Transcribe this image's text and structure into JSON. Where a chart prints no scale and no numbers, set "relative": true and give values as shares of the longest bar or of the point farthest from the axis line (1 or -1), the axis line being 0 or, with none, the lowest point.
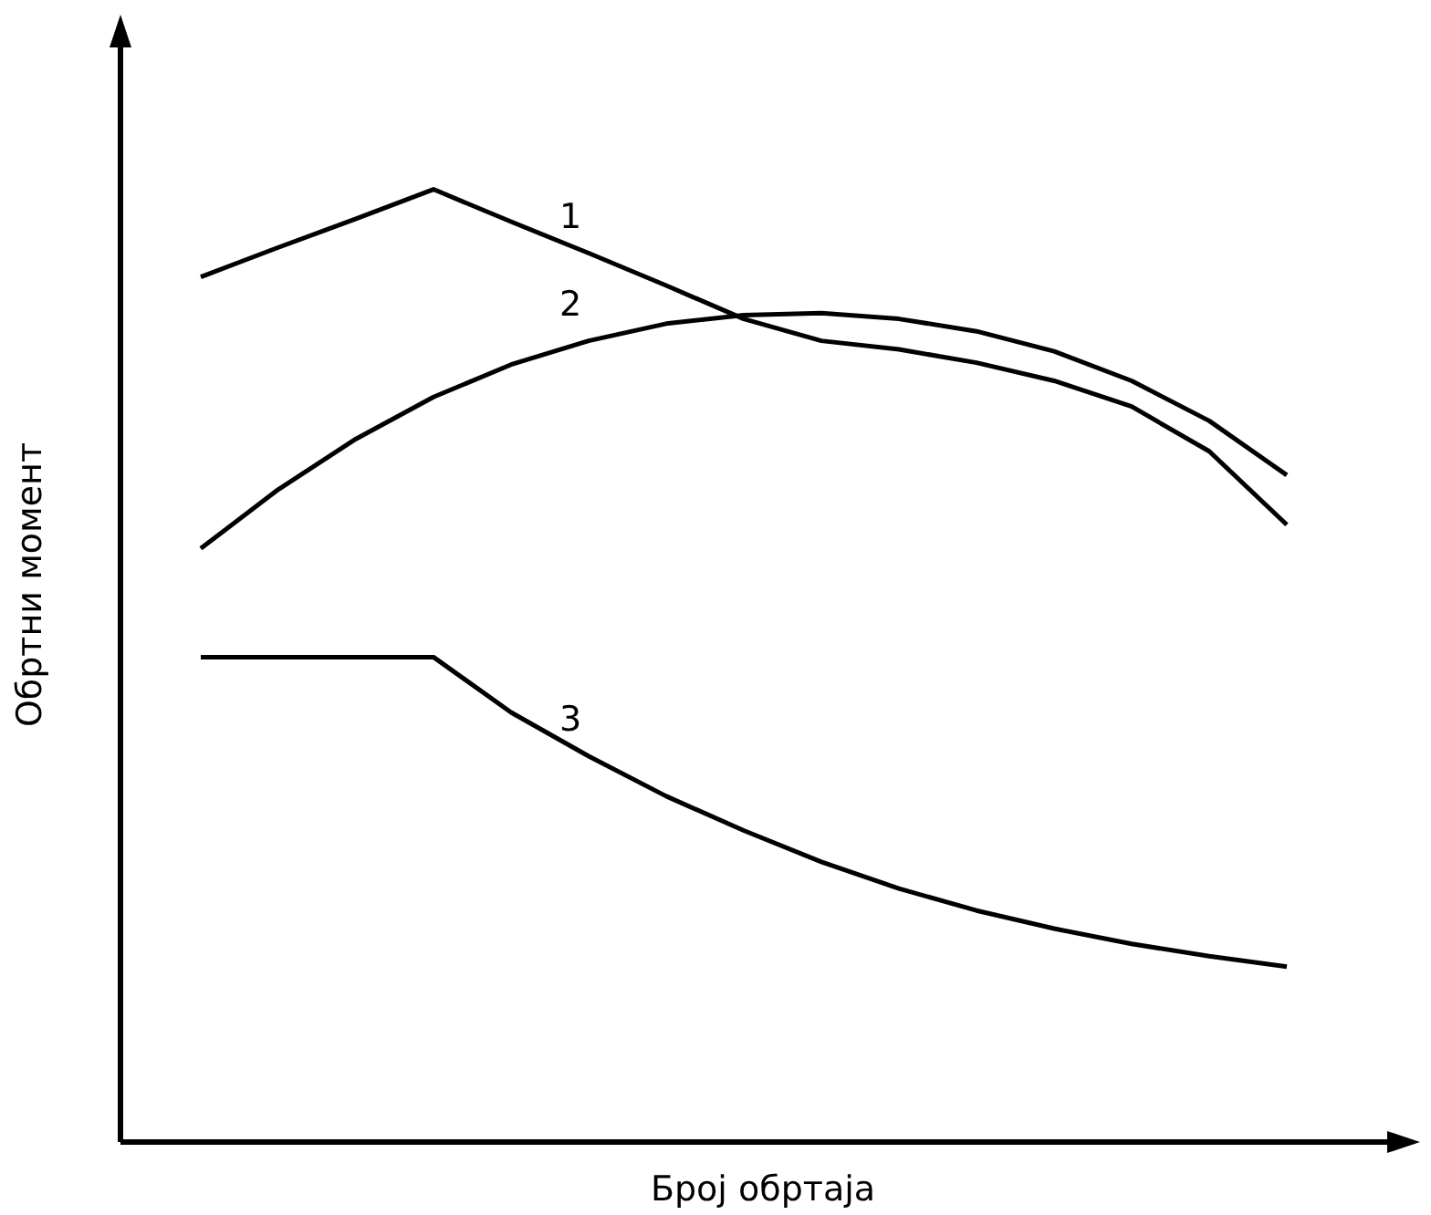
{
  "chart_data": {
    "type": "line",
    "relative": true,
    "xlabel": "Број обртаја",
    "ylabel": "Обртни момент",
    "categories": [
      null,
      null,
      null,
      null,
      null,
      null,
      null,
      null,
      null,
      null,
      null,
      null,
      null,
      null,
      null
    ],
    "grid": false,
    "legend": false,
    "marker": "none",
    "line_style": "solid",
    "series": [
      {
        "name": "1",
        "color": "#000000",
        "values": [
          0.908,
          0.939,
          0.969,
          1,
          0.966,
          0.933,
          0.899,
          0.864,
          0.841,
          0.832,
          0.818,
          0.799,
          0.772,
          0.725,
          0.648
        ]
      },
      {
        "name": "2",
        "color": "#000000",
        "values": [
          0.623,
          0.685,
          0.738,
          0.782,
          0.816,
          0.841,
          0.859,
          0.868,
          0.87,
          0.864,
          0.851,
          0.83,
          0.799,
          0.757,
          0.7
        ]
      },
      {
        "name": "3",
        "color": "#000000",
        "values": [
          0.509,
          0.509,
          0.509,
          0.509,
          0.451,
          0.405,
          0.363,
          0.327,
          0.294,
          0.266,
          0.243,
          0.224,
          0.208,
          0.195,
          0.184
        ]
      }
    ]
  }
}
